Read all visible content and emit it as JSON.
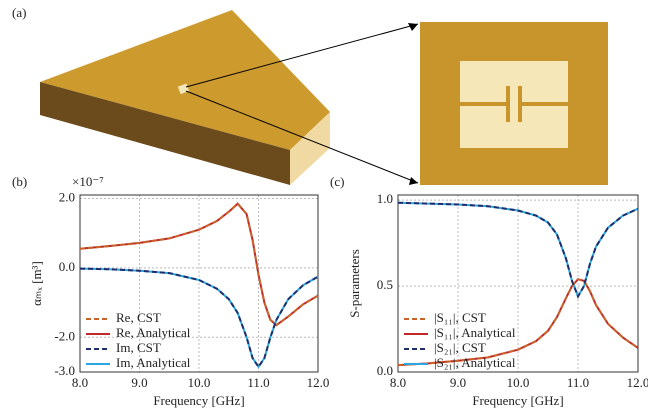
{
  "illustration": {
    "panel": "(a)"
  },
  "chart_data": [
    {
      "type": "line",
      "panel": "(b)",
      "x_label": "Frequency [GHz]",
      "y_label": "αₘₓ [m³]",
      "y_multiplier": "×10⁻⁷",
      "x": [
        8,
        8.5,
        9,
        9.5,
        10,
        10.3,
        10.5,
        10.65,
        10.8,
        10.9,
        11.0,
        11.1,
        11.2,
        11.3,
        11.5,
        11.75,
        12
      ],
      "xlim": [
        8,
        12
      ],
      "xticks": [
        {
          "value": 8,
          "label": "8.0"
        },
        {
          "value": 9,
          "label": "9.0"
        },
        {
          "value": 10,
          "label": "10.0"
        },
        {
          "value": 11,
          "label": "11.0"
        },
        {
          "value": 12,
          "label": "12.0"
        }
      ],
      "ylim": [
        -3,
        2.1
      ],
      "yticks": [
        {
          "value": 2,
          "label": "2.0"
        },
        {
          "value": 0,
          "label": "0.0"
        },
        {
          "value": -2,
          "label": "-2.0"
        },
        {
          "value": -3,
          "label": "-3.0"
        }
      ],
      "grid": true,
      "legend": "lower left",
      "series": [
        {
          "name": "Re, CST",
          "color": "#c8642a",
          "dashed": true,
          "values": [
            0.55,
            0.63,
            0.72,
            0.85,
            1.1,
            1.35,
            1.62,
            1.85,
            1.55,
            0.8,
            -0.2,
            -1.0,
            -1.5,
            -1.65,
            -1.4,
            -1.05,
            -0.8
          ]
        },
        {
          "name": "Re, Analytical",
          "color": "#c0282a",
          "dashed": false,
          "values": [
            0.55,
            0.63,
            0.72,
            0.85,
            1.1,
            1.35,
            1.62,
            1.85,
            1.55,
            0.8,
            -0.2,
            -1.0,
            -1.5,
            -1.65,
            -1.4,
            -1.05,
            -0.8
          ]
        },
        {
          "name": "Im, CST",
          "color": "#1f2f6b",
          "dashed": true,
          "values": [
            -0.02,
            -0.04,
            -0.08,
            -0.15,
            -0.35,
            -0.6,
            -0.9,
            -1.3,
            -2.0,
            -2.6,
            -2.85,
            -2.6,
            -2.0,
            -1.5,
            -0.9,
            -0.5,
            -0.25
          ]
        },
        {
          "name": "Im, Analytical",
          "color": "#2aa7e0",
          "dashed": false,
          "values": [
            -0.02,
            -0.04,
            -0.08,
            -0.15,
            -0.35,
            -0.6,
            -0.9,
            -1.3,
            -2.0,
            -2.6,
            -2.85,
            -2.6,
            -2.0,
            -1.5,
            -0.9,
            -0.5,
            -0.25
          ]
        }
      ]
    },
    {
      "type": "line",
      "panel": "(c)",
      "x_label": "Frequency [GHz]",
      "y_label": "S-parameters",
      "x": [
        8,
        8.5,
        9,
        9.5,
        10,
        10.3,
        10.5,
        10.65,
        10.8,
        10.9,
        11.0,
        11.1,
        11.2,
        11.3,
        11.5,
        11.75,
        12
      ],
      "xlim": [
        8,
        12
      ],
      "xticks": [
        {
          "value": 8,
          "label": "8.0"
        },
        {
          "value": 9,
          "label": "9.0"
        },
        {
          "value": 10,
          "label": "10.0"
        },
        {
          "value": 11,
          "label": "11.0"
        },
        {
          "value": 12,
          "label": "12.0"
        }
      ],
      "ylim": [
        0,
        1.03
      ],
      "yticks": [
        {
          "value": 0,
          "label": "0.0"
        },
        {
          "value": 0.5,
          "label": "0.5"
        },
        {
          "value": 1,
          "label": "1.0"
        }
      ],
      "grid": true,
      "legend": "lower left",
      "series": [
        {
          "name": "|S₁₁|, CST",
          "color": "#c8642a",
          "dashed": true,
          "values": [
            0.04,
            0.05,
            0.065,
            0.085,
            0.13,
            0.18,
            0.24,
            0.32,
            0.43,
            0.5,
            0.54,
            0.53,
            0.47,
            0.39,
            0.28,
            0.2,
            0.14
          ]
        },
        {
          "name": "|S₁₁|, Analytical",
          "color": "#c0282a",
          "dashed": false,
          "values": [
            0.04,
            0.05,
            0.065,
            0.085,
            0.13,
            0.18,
            0.24,
            0.32,
            0.43,
            0.5,
            0.54,
            0.53,
            0.47,
            0.39,
            0.28,
            0.2,
            0.14
          ]
        },
        {
          "name": "|S₂₁|, CST",
          "color": "#1f2f6b",
          "dashed": true,
          "values": [
            0.985,
            0.98,
            0.975,
            0.965,
            0.94,
            0.91,
            0.87,
            0.8,
            0.66,
            0.53,
            0.44,
            0.5,
            0.63,
            0.73,
            0.84,
            0.91,
            0.95
          ]
        },
        {
          "name": "|S₂₁|, Analytical",
          "color": "#2aa7e0",
          "dashed": false,
          "values": [
            0.985,
            0.98,
            0.975,
            0.965,
            0.94,
            0.91,
            0.87,
            0.8,
            0.66,
            0.53,
            0.44,
            0.5,
            0.63,
            0.73,
            0.84,
            0.91,
            0.95
          ]
        }
      ]
    }
  ]
}
